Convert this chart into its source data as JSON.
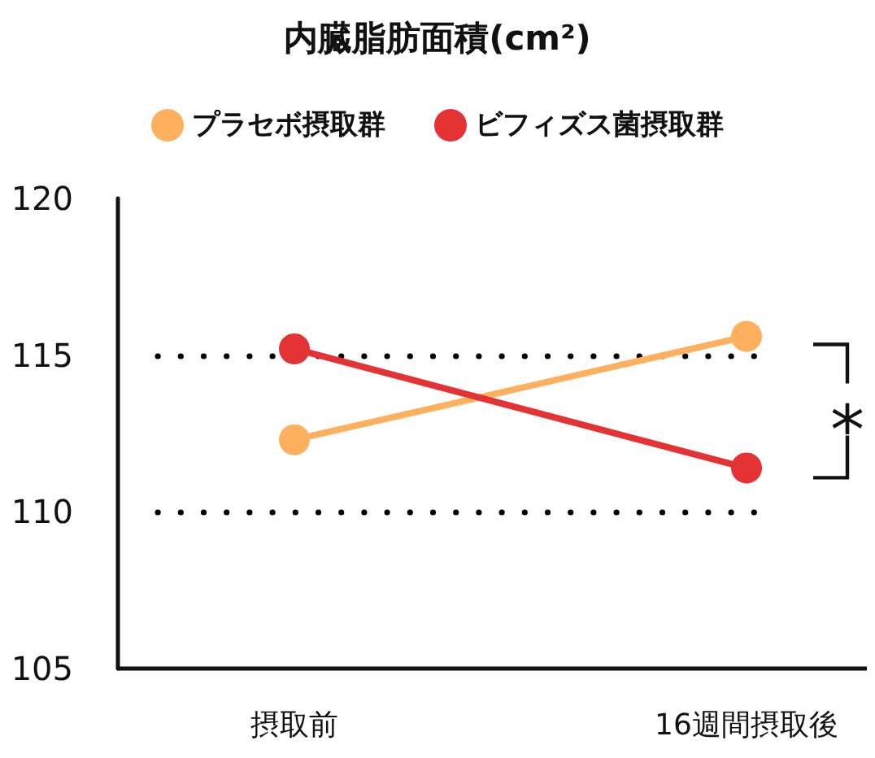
{
  "chart_data": {
    "type": "line",
    "title": "内臓脂肪面積(cm²)",
    "categories": [
      "摂取前",
      "16週間摂取後"
    ],
    "series": [
      {
        "name": "プラセボ摂取群",
        "color": "#ffb05e",
        "values": [
          112.3,
          115.6
        ]
      },
      {
        "name": "ビフィズス菌摂取群",
        "color": "#e53235",
        "values": [
          115.2,
          111.4
        ]
      }
    ],
    "ylim": [
      105,
      120
    ],
    "yticks": [
      105,
      110,
      115,
      120
    ],
    "grid": false,
    "legend": "top",
    "marker": "circle",
    "line_style": "solid",
    "ref_lines": [
      {
        "axis": "y",
        "value": 115,
        "color": "#000000",
        "line_style": "dotted"
      },
      {
        "axis": "y",
        "value": 110,
        "color": "#000000",
        "line_style": "dotted"
      }
    ],
    "annotations": [
      "*"
    ]
  }
}
